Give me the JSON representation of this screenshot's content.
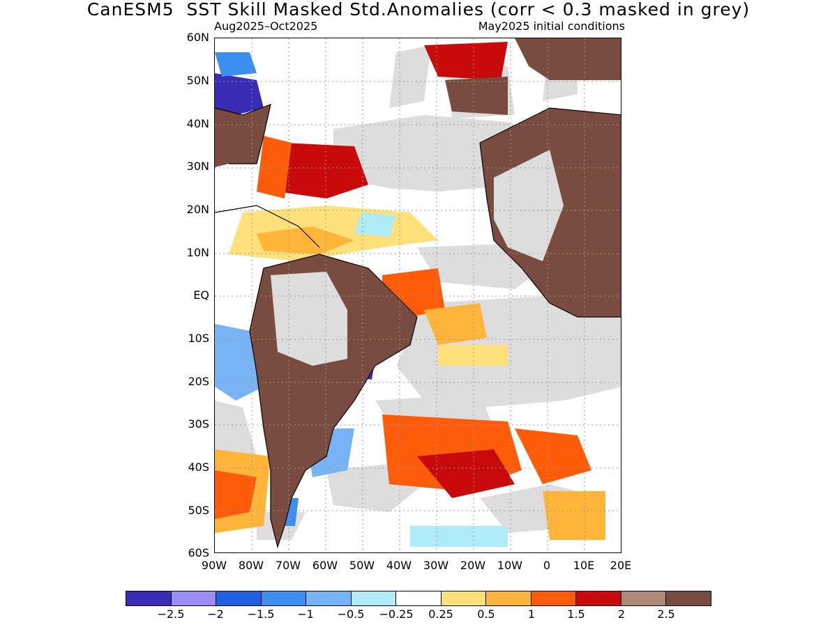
{
  "header": {
    "title": "CanESM5  SST Skill Masked Std.Anomalies (corr < 0.3 masked in grey)",
    "period": "Aug2025–Oct2025",
    "initial_conditions": "May2025 initial conditions"
  },
  "axes": {
    "lat_labels": [
      "60N",
      "50N",
      "40N",
      "30N",
      "20N",
      "10N",
      "EQ",
      "10S",
      "20S",
      "30S",
      "40S",
      "50S",
      "60S"
    ],
    "lon_labels": [
      "90W",
      "80W",
      "70W",
      "60W",
      "50W",
      "40W",
      "30W",
      "20W",
      "10W",
      "0",
      "10E",
      "20E"
    ]
  },
  "colors": {
    "land": "#7a4b3f",
    "mask": "#dddddd",
    "ocean_neutral": "#ffffff"
  },
  "colorbar": {
    "colors": [
      "#3a2db5",
      "#9c8cf5",
      "#1f5fe0",
      "#3c8ff0",
      "#78b4f5",
      "#b0ecf8",
      "#ffffff",
      "#ffe07a",
      "#ffb53a",
      "#ff5c0a",
      "#c80a0a",
      "#b08878",
      "#7a4b3f"
    ],
    "labels": [
      "−2.5",
      "−2",
      "−1.5",
      "−1",
      "−0.5",
      "−0.25",
      "0.25",
      "0.5",
      "1",
      "1.5",
      "2",
      "2.5"
    ]
  }
}
